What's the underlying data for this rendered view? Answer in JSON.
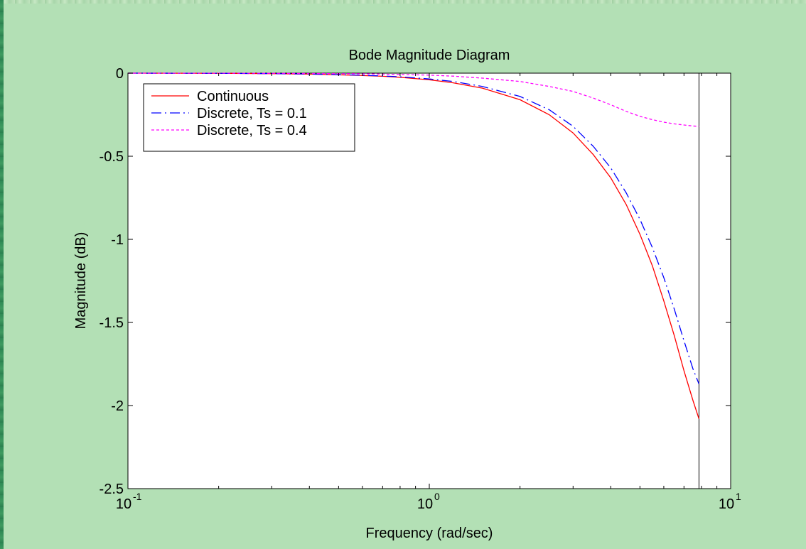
{
  "chart_data": {
    "type": "line",
    "title": "Bode Magnitude Diagram",
    "xlabel": "Frequency (rad/sec)",
    "ylabel": "Magnitude (dB)",
    "xscale": "log",
    "xlim": [
      0.1,
      10
    ],
    "ylim": [
      -2.5,
      0
    ],
    "x_ticks": [
      0.1,
      1,
      10
    ],
    "x_tick_labels": [
      {
        "base": "10",
        "exp": "-1"
      },
      {
        "base": "10",
        "exp": "0"
      },
      {
        "base": "10",
        "exp": "1"
      }
    ],
    "y_ticks": [
      0,
      -0.5,
      -1,
      -1.5,
      -2,
      -2.5
    ],
    "y_tick_labels": [
      "0",
      "-0.5",
      "-1",
      "-1.5",
      "-2",
      "-2.5"
    ],
    "grid": false,
    "legend_position": "top-left",
    "vertical_line_x": 7.85,
    "series": [
      {
        "name": "Continuous",
        "color": "#ff0000",
        "style": "solid",
        "x": [
          0.1,
          0.2,
          0.3,
          0.4,
          0.5,
          0.6,
          0.7,
          0.8,
          1.0,
          1.2,
          1.5,
          2.0,
          2.5,
          3.0,
          3.5,
          4.0,
          4.5,
          5.0,
          5.5,
          6.0,
          6.5,
          7.0,
          7.5,
          7.85
        ],
        "y": [
          0.0,
          -0.001,
          -0.003,
          -0.006,
          -0.01,
          -0.014,
          -0.019,
          -0.025,
          -0.04,
          -0.058,
          -0.09,
          -0.16,
          -0.25,
          -0.36,
          -0.49,
          -0.63,
          -0.79,
          -0.97,
          -1.16,
          -1.37,
          -1.58,
          -1.79,
          -1.97,
          -2.08
        ]
      },
      {
        "name": "Discrete, Ts = 0.1",
        "color": "#0000ff",
        "style": "dashdot",
        "x": [
          0.1,
          0.2,
          0.3,
          0.4,
          0.5,
          0.6,
          0.7,
          0.8,
          1.0,
          1.2,
          1.5,
          2.0,
          2.5,
          3.0,
          3.5,
          4.0,
          4.5,
          5.0,
          5.5,
          6.0,
          6.5,
          7.0,
          7.5,
          7.85
        ],
        "y": [
          0.0,
          -0.001,
          -0.003,
          -0.005,
          -0.009,
          -0.013,
          -0.017,
          -0.022,
          -0.035,
          -0.05,
          -0.08,
          -0.14,
          -0.22,
          -0.32,
          -0.44,
          -0.57,
          -0.72,
          -0.88,
          -1.05,
          -1.23,
          -1.42,
          -1.61,
          -1.78,
          -1.87
        ]
      },
      {
        "name": "Discrete, Ts = 0.4",
        "color": "#ff00ff",
        "style": "dotted",
        "x": [
          0.1,
          0.2,
          0.3,
          0.4,
          0.5,
          0.6,
          0.7,
          0.8,
          1.0,
          1.2,
          1.5,
          2.0,
          2.5,
          3.0,
          3.5,
          4.0,
          4.5,
          5.0,
          5.5,
          6.0,
          6.5,
          7.0,
          7.5,
          7.85
        ],
        "y": [
          0.0,
          0.0,
          -0.001,
          -0.002,
          -0.003,
          -0.004,
          -0.006,
          -0.008,
          -0.012,
          -0.018,
          -0.03,
          -0.05,
          -0.08,
          -0.11,
          -0.15,
          -0.19,
          -0.23,
          -0.26,
          -0.28,
          -0.295,
          -0.305,
          -0.312,
          -0.318,
          -0.32
        ]
      }
    ]
  }
}
